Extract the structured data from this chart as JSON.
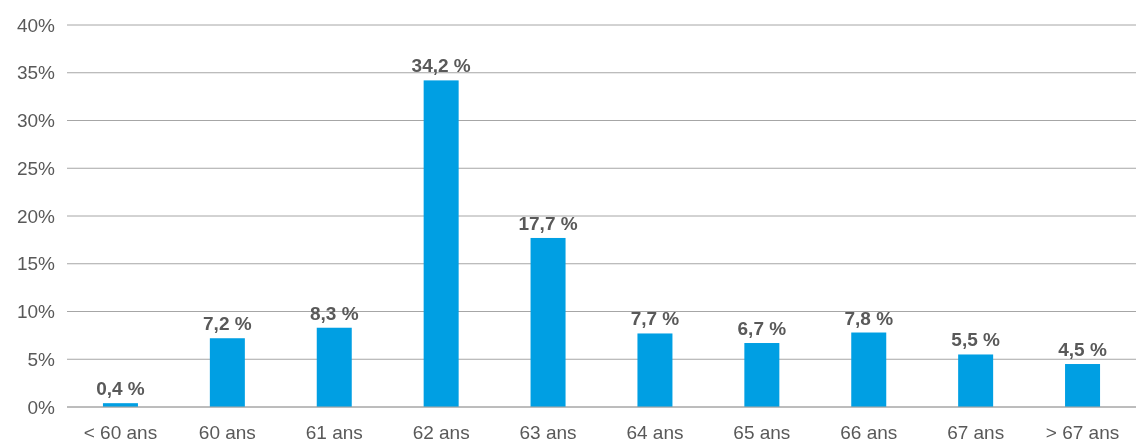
{
  "chart_data": {
    "type": "bar",
    "categories": [
      "< 60 ans",
      "60 ans",
      "61 ans",
      "62 ans",
      "63 ans",
      "64 ans",
      "65 ans",
      "66 ans",
      "67 ans",
      "> 67 ans"
    ],
    "values": [
      0.4,
      7.2,
      8.3,
      34.2,
      17.7,
      7.7,
      6.7,
      7.8,
      5.5,
      4.5
    ],
    "value_labels": [
      "0,4 %",
      "7,2 %",
      "8,3 %",
      "34,2 %",
      "17,7 %",
      "7,7 %",
      "6,7 %",
      "7,8 %",
      "5,5 %",
      "4,5 %"
    ],
    "color": "#009fe3",
    "ylim": [
      0,
      40
    ],
    "yticks": [
      {
        "value": 0,
        "label": "0%"
      },
      {
        "value": 5,
        "label": "5%"
      },
      {
        "value": 10,
        "label": "10%"
      },
      {
        "value": 15,
        "label": "15%"
      },
      {
        "value": 20,
        "label": "20%"
      },
      {
        "value": 25,
        "label": "25%"
      },
      {
        "value": 30,
        "label": "30%"
      },
      {
        "value": 35,
        "label": "35%"
      },
      {
        "value": 40,
        "label": "40%"
      }
    ],
    "grid": "y"
  }
}
